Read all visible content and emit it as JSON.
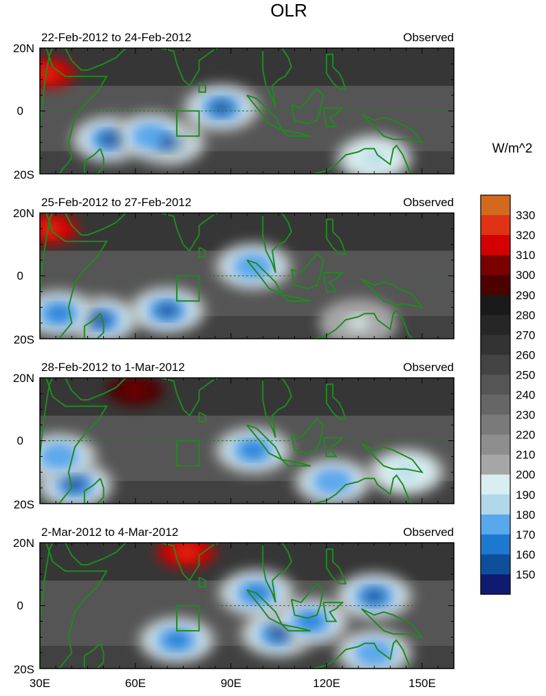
{
  "title": "OLR",
  "colorbar": {
    "unit_label": "W/m^2",
    "levels": [
      330,
      320,
      310,
      300,
      290,
      280,
      270,
      260,
      250,
      240,
      230,
      220,
      210,
      200,
      190,
      180,
      170,
      160,
      150
    ],
    "colors": [
      "#d2691e",
      "#e03214",
      "#d40000",
      "#7a0000",
      "#4d0000",
      "#1a1a1a",
      "#262626",
      "#333333",
      "#444444",
      "#555555",
      "#666666",
      "#7a7a7a",
      "#8e8e8e",
      "#a6a6a6",
      "#d8eef0",
      "#b0d8e8",
      "#5aa8ec",
      "#1f78d0",
      "#0e4f9c",
      "#101a70"
    ]
  },
  "chart_data": [
    {
      "type": "heatmap",
      "left_title": "22-Feb-2012 to 24-Feb-2012",
      "right_title": "Observed",
      "xlim": [
        30,
        160
      ],
      "ylim": [
        -20,
        20
      ],
      "x_ticks": [
        "30E",
        "60E",
        "90E",
        "120E",
        "150E"
      ],
      "y_ticks": [
        "20N",
        "0",
        "20S"
      ],
      "features": [
        {
          "lon": 87,
          "lat": 1,
          "value": 150
        },
        {
          "lon": 70,
          "lat": -10,
          "value": 150
        },
        {
          "lon": 52,
          "lat": -9,
          "value": 150
        },
        {
          "lon": 65,
          "lat": -8,
          "value": 170
        },
        {
          "lon": 135,
          "lat": -15,
          "value": 180
        },
        {
          "lon": 32,
          "lat": 12,
          "value": 320
        }
      ]
    },
    {
      "type": "heatmap",
      "left_title": "25-Feb-2012 to 27-Feb-2012",
      "right_title": "Observed",
      "xlim": [
        30,
        160
      ],
      "ylim": [
        -20,
        20
      ],
      "x_ticks": [
        "30E",
        "60E",
        "90E",
        "120E",
        "150E"
      ],
      "y_ticks": [
        "20N",
        "0",
        "20S"
      ],
      "features": [
        {
          "lon": 70,
          "lat": -11,
          "value": 150
        },
        {
          "lon": 49,
          "lat": -14,
          "value": 150
        },
        {
          "lon": 36,
          "lat": -12,
          "value": 160
        },
        {
          "lon": 97,
          "lat": 3,
          "value": 170
        },
        {
          "lon": 130,
          "lat": -15,
          "value": 190
        },
        {
          "lon": 33,
          "lat": 15,
          "value": 320
        }
      ]
    },
    {
      "type": "heatmap",
      "left_title": "28-Feb-2012 to 1-Mar-2012",
      "right_title": "Observed",
      "xlim": [
        30,
        160
      ],
      "ylim": [
        -20,
        20
      ],
      "x_ticks": [
        "30E",
        "60E",
        "90E",
        "120E",
        "150E"
      ],
      "y_ticks": [
        "20N",
        "0",
        "20S"
      ],
      "features": [
        {
          "lon": 41,
          "lat": -14,
          "value": 150
        },
        {
          "lon": 36,
          "lat": -5,
          "value": 170
        },
        {
          "lon": 97,
          "lat": -3,
          "value": 160
        },
        {
          "lon": 122,
          "lat": -13,
          "value": 170
        },
        {
          "lon": 145,
          "lat": -10,
          "value": 180
        },
        {
          "lon": 60,
          "lat": 16,
          "value": 300
        }
      ]
    },
    {
      "type": "heatmap",
      "left_title": "2-Mar-2012 to 4-Mar-2012",
      "right_title": "Observed",
      "xlim": [
        30,
        160
      ],
      "ylim": [
        -20,
        20
      ],
      "x_ticks": [
        "30E",
        "60E",
        "90E",
        "120E",
        "150E"
      ],
      "y_ticks": [
        "20N",
        "0",
        "20S"
      ],
      "features": [
        {
          "lon": 105,
          "lat": -9,
          "value": 150
        },
        {
          "lon": 135,
          "lat": 3,
          "value": 150
        },
        {
          "lon": 98,
          "lat": 4,
          "value": 160
        },
        {
          "lon": 115,
          "lat": -5,
          "value": 160
        },
        {
          "lon": 73,
          "lat": -11,
          "value": 160
        },
        {
          "lon": 135,
          "lat": -15,
          "value": 170
        },
        {
          "lon": 76,
          "lat": 17,
          "value": 320
        }
      ]
    }
  ]
}
